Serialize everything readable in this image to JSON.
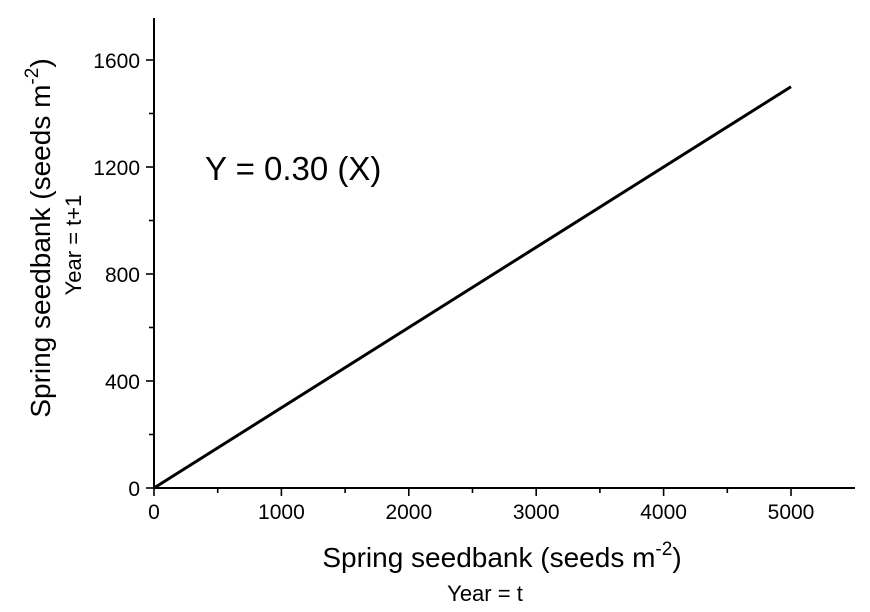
{
  "chart_data": {
    "type": "line",
    "xlabel": "Spring seedbank (seeds m",
    "xlabel_sup": "-2",
    "xlabel_end": ")",
    "xlabel_sub": "Year = t",
    "ylabel": "Spring seedbank (seeds m",
    "ylabel_sup": "-2",
    "ylabel_end": ")",
    "ylabel_sub": "Year = t+1",
    "xlim": [
      0,
      5500
    ],
    "ylim": [
      0,
      1750
    ],
    "x_ticks": [
      0,
      1000,
      2000,
      3000,
      4000,
      5000
    ],
    "x_tick_labels": [
      "0",
      "1000",
      "2000",
      "3000",
      "4000",
      "5000"
    ],
    "x_minor_ticks": [
      500,
      1500,
      2500,
      3500,
      4500
    ],
    "y_ticks": [
      0,
      400,
      800,
      1200,
      1600
    ],
    "y_tick_labels": [
      "0",
      "400",
      "800",
      "1200",
      "1600"
    ],
    "y_minor_ticks": [
      200,
      600,
      1000,
      1400
    ],
    "grid": false,
    "series": [
      {
        "x": [
          0,
          5000
        ],
        "y": [
          0,
          1500
        ]
      }
    ],
    "annotation": "Y = 0.30 (X)"
  }
}
